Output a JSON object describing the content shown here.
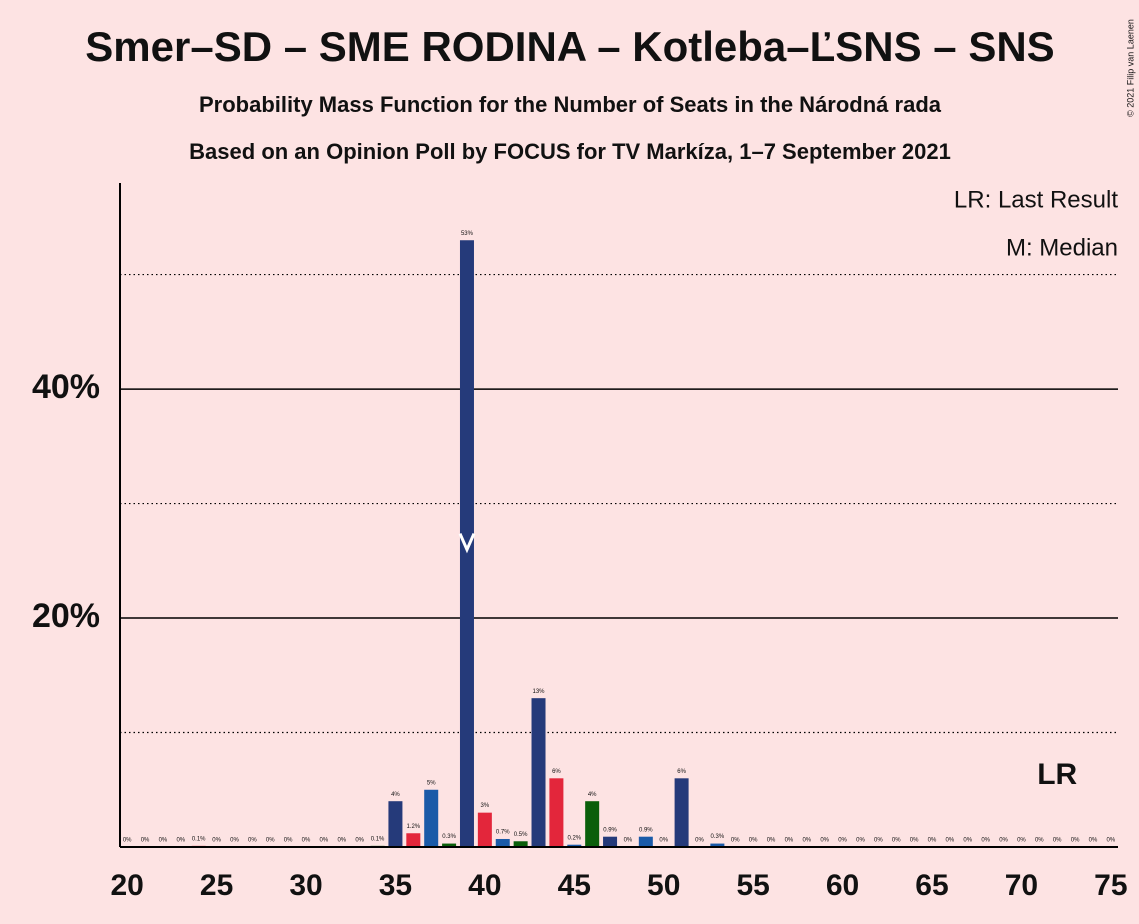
{
  "chart_data": {
    "type": "bar",
    "title": "Smer–SD – SME RODINA – Kotleba–ĽSNS – SNS",
    "subtitle": [
      "Probability Mass Function for the Number of Seats in the Národná rada",
      "Based on an Opinion Poll by FOCUS for TV Markíza, 1–7 September 2021"
    ],
    "copyright": "© 2021 Filip van Laenen",
    "legend": [
      "LR: Last Result",
      "M: Median"
    ],
    "x": [
      20,
      21,
      22,
      23,
      24,
      25,
      26,
      27,
      28,
      29,
      30,
      31,
      32,
      33,
      34,
      35,
      36,
      37,
      38,
      39,
      40,
      41,
      42,
      43,
      44,
      45,
      46,
      47,
      48,
      49,
      50,
      51,
      52,
      53,
      54,
      55,
      56,
      57,
      58,
      59,
      60,
      61,
      62,
      63,
      64,
      65,
      66,
      67,
      68,
      69,
      70,
      71,
      72,
      73,
      74,
      75
    ],
    "values": [
      0,
      0,
      0,
      0,
      0.1,
      0,
      0,
      0,
      0,
      0,
      0,
      0,
      0,
      0,
      0.1,
      4,
      1.2,
      5,
      0.3,
      53,
      3,
      0.7,
      0.5,
      13,
      6,
      0.2,
      4,
      0.9,
      0,
      0.9,
      0,
      6,
      0,
      0.3,
      0,
      0,
      0,
      0,
      0,
      0,
      0,
      0,
      0,
      0,
      0,
      0,
      0,
      0,
      0,
      0,
      0,
      0,
      0,
      0,
      0,
      0
    ],
    "value_labels": [
      "0%",
      "0%",
      "0%",
      "0%",
      "0.1%",
      "0%",
      "0%",
      "0%",
      "0%",
      "0%",
      "0%",
      "0%",
      "0%",
      "0%",
      "0.1%",
      "4%",
      "1.2%",
      "5%",
      "0.3%",
      "53%",
      "3%",
      "0.7%",
      "0.5%",
      "13%",
      "6%",
      "0.2%",
      "4%",
      "0.9%",
      "0%",
      "0.9%",
      "0%",
      "6%",
      "0%",
      "0.3%",
      "0%",
      "0%",
      "0%",
      "0%",
      "0%",
      "0%",
      "0%",
      "0%",
      "0%",
      "0%",
      "0%",
      "0%",
      "0%",
      "0%",
      "0%",
      "0%",
      "0%",
      "0%",
      "0%",
      "0%",
      "0%",
      "0%"
    ],
    "colors": [
      "#e3263b",
      "#1a5aa8",
      "#0a5e0a",
      "#253a7a"
    ],
    "xlim": [
      19.6,
      75.4
    ],
    "xticks": [
      20,
      25,
      30,
      35,
      40,
      45,
      50,
      55,
      60,
      65,
      70,
      75
    ],
    "ylim": [
      0,
      58
    ],
    "yticks": [
      {
        "value": 20,
        "label": "20%"
      },
      {
        "value": 40,
        "label": "40%"
      }
    ],
    "minor_grid": [
      10,
      30,
      50
    ],
    "median": {
      "x": 39
    },
    "last_result": {
      "x": 72,
      "label": "LR"
    }
  }
}
